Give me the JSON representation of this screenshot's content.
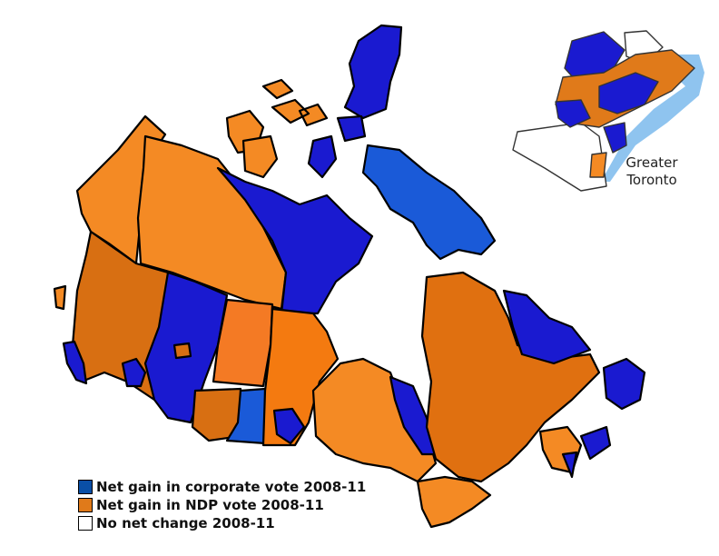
{
  "colors": {
    "corporate_gain": "#0a4fa6",
    "ndp_gain": "#e07a1a",
    "no_change": "#ffffff",
    "map_blue": "#1a1ad0",
    "map_orange": "#f48a24",
    "map_orange_dark": "#d86f12",
    "water_shadow": "#8fc4ef"
  },
  "legend": [
    {
      "label": "Net gain in corporate vote 2008-11",
      "swatch_color": "#0a4fa6"
    },
    {
      "label": "Net gain in NDP vote 2008-11",
      "swatch_color": "#e07a1a"
    },
    {
      "label": "No net change 2008-11",
      "swatch_color": "#ffffff"
    }
  ],
  "inset": {
    "label_line1": "Greater",
    "label_line2": "Toronto"
  }
}
